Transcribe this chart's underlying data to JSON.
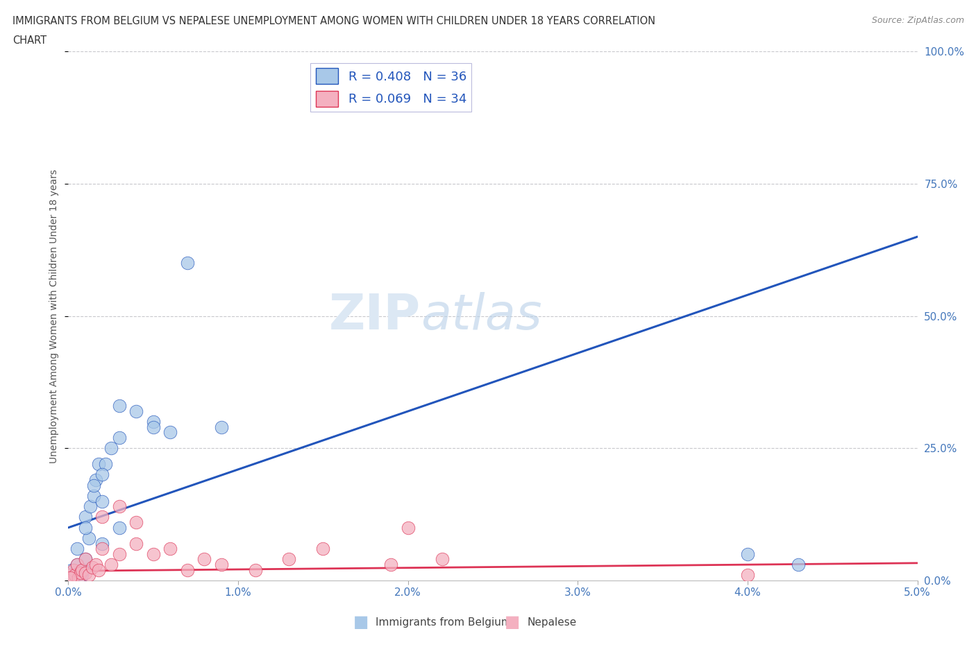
{
  "title_line1": "IMMIGRANTS FROM BELGIUM VS NEPALESE UNEMPLOYMENT AMONG WOMEN WITH CHILDREN UNDER 18 YEARS CORRELATION",
  "title_line2": "CHART",
  "source": "Source: ZipAtlas.com",
  "xlabel_bottom": "Immigrants from Belgium",
  "xlabel_bottom2": "Nepalese",
  "ylabel": "Unemployment Among Women with Children Under 18 years",
  "xlim": [
    0.0,
    0.05
  ],
  "ylim": [
    0.0,
    1.0
  ],
  "xticks": [
    0.0,
    0.01,
    0.02,
    0.03,
    0.04,
    0.05
  ],
  "xtick_labels": [
    "0.0%",
    "1.0%",
    "2.0%",
    "3.0%",
    "4.0%",
    "5.0%"
  ],
  "ytick_labels": [
    "0.0%",
    "25.0%",
    "50.0%",
    "75.0%",
    "100.0%"
  ],
  "yticks": [
    0.0,
    0.25,
    0.5,
    0.75,
    1.0
  ],
  "blue_color": "#a8c8e8",
  "pink_color": "#f4b0c0",
  "blue_line_color": "#2255bb",
  "pink_line_color": "#dd3355",
  "R_blue": 0.408,
  "N_blue": 36,
  "R_pink": 0.069,
  "N_pink": 34,
  "blue_scatter_x": [
    0.0002,
    0.0003,
    0.0004,
    0.0005,
    0.0006,
    0.0007,
    0.0008,
    0.0009,
    0.001,
    0.001,
    0.0012,
    0.0013,
    0.0015,
    0.0016,
    0.0018,
    0.002,
    0.002,
    0.0022,
    0.0025,
    0.003,
    0.003,
    0.004,
    0.005,
    0.006,
    0.007,
    0.009,
    0.0005,
    0.001,
    0.0015,
    0.002,
    0.003,
    0.005,
    0.04,
    0.043,
    0.0,
    0.0001
  ],
  "blue_scatter_y": [
    0.02,
    0.005,
    0.01,
    0.03,
    0.015,
    0.005,
    0.01,
    0.02,
    0.04,
    0.12,
    0.08,
    0.14,
    0.16,
    0.19,
    0.22,
    0.07,
    0.15,
    0.22,
    0.25,
    0.1,
    0.27,
    0.32,
    0.3,
    0.28,
    0.6,
    0.29,
    0.06,
    0.1,
    0.18,
    0.2,
    0.33,
    0.29,
    0.05,
    0.03,
    0.01,
    0.005
  ],
  "pink_scatter_x": [
    0.0001,
    0.0002,
    0.0003,
    0.0004,
    0.0005,
    0.0006,
    0.0007,
    0.0008,
    0.001,
    0.001,
    0.0012,
    0.0014,
    0.0016,
    0.0018,
    0.002,
    0.002,
    0.0025,
    0.003,
    0.003,
    0.004,
    0.004,
    0.005,
    0.006,
    0.007,
    0.008,
    0.009,
    0.011,
    0.013,
    0.015,
    0.019,
    0.02,
    0.022,
    0.04,
    0.0001
  ],
  "pink_scatter_y": [
    0.01,
    0.005,
    0.02,
    0.01,
    0.03,
    0.005,
    0.015,
    0.02,
    0.015,
    0.04,
    0.01,
    0.025,
    0.03,
    0.02,
    0.06,
    0.12,
    0.03,
    0.05,
    0.14,
    0.07,
    0.11,
    0.05,
    0.06,
    0.02,
    0.04,
    0.03,
    0.02,
    0.04,
    0.06,
    0.03,
    0.1,
    0.04,
    0.01,
    0.005
  ],
  "watermark_zip": "ZIP",
  "watermark_atlas": "atlas",
  "background_color": "#ffffff",
  "grid_color": "#c8c8cc"
}
